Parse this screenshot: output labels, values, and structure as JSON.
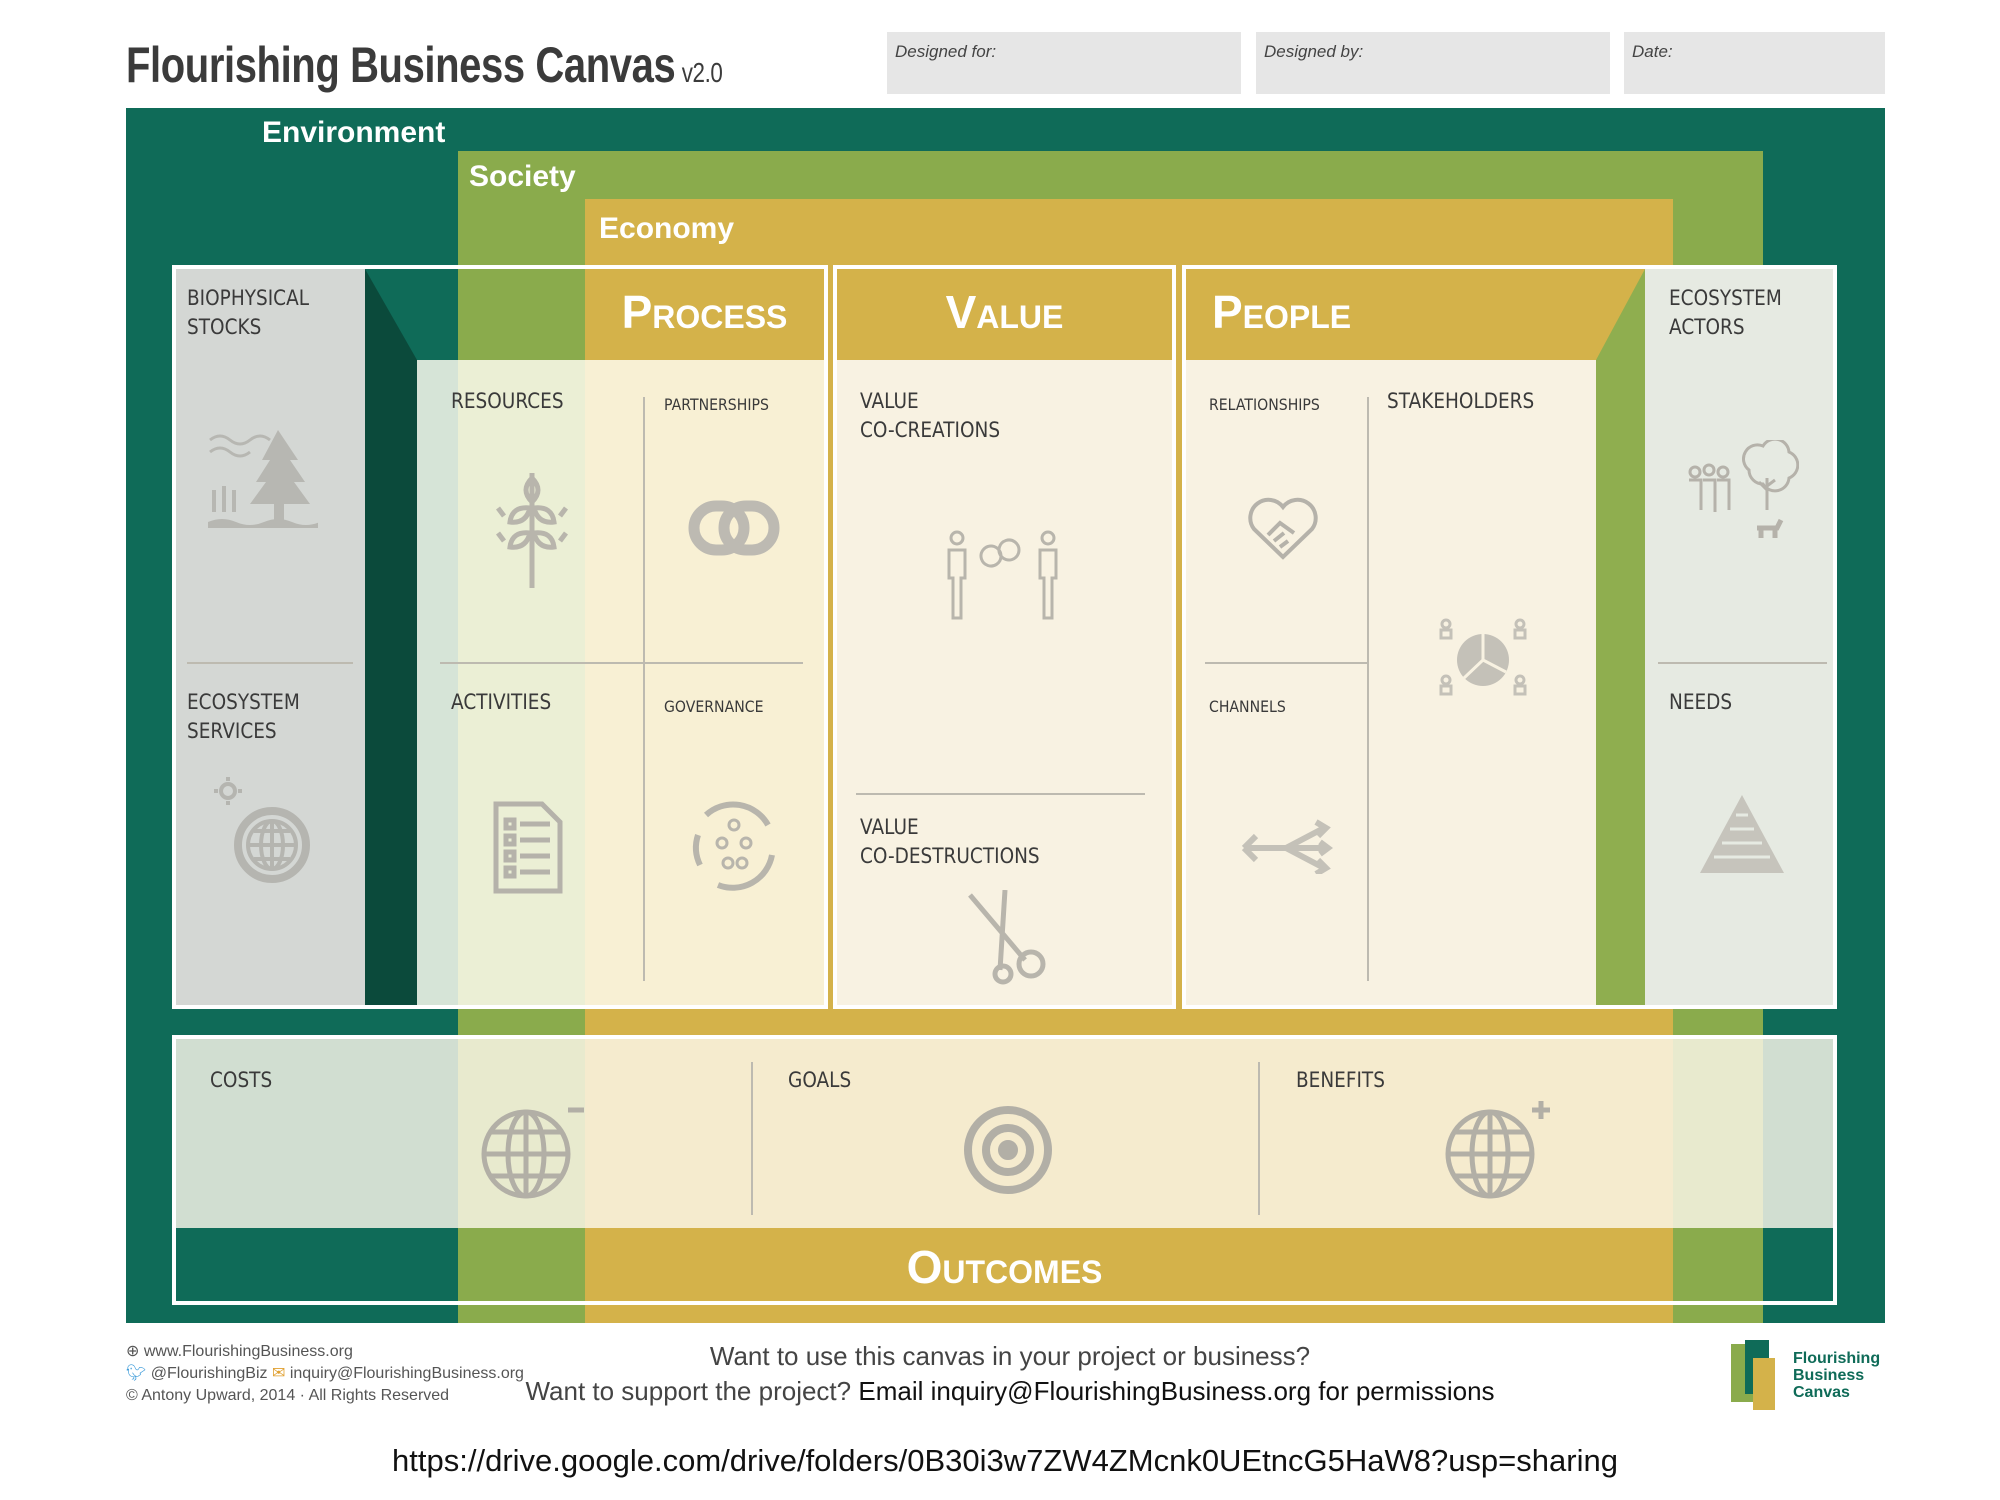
{
  "header": {
    "title": "Flourishing Business Canvas",
    "version": "v2.0",
    "designed_for": "Designed for:",
    "designed_by": "Designed by:",
    "date": "Date:"
  },
  "layers": {
    "environment": "Environment",
    "society": "Society",
    "economy": "Economy"
  },
  "colors": {
    "environment": "#0f6b58",
    "society": "#8aab4c",
    "economy": "#d4b24a",
    "dark_strip": "#0b4a3b",
    "icon": "#b5b2a8"
  },
  "columns": {
    "biophysical_stocks": "BIOPHYSICAL\nSTOCKS",
    "ecosystem_services": "ECOSYSTEM\nSERVICES",
    "process": {
      "title": "Process",
      "resources": "RESOURCES",
      "partnerships": "PARTNERSHIPS",
      "activities": "ACTIVITIES",
      "governance": "GOVERNANCE"
    },
    "value": {
      "title": "Value",
      "co_creations": "VALUE\nCO-CREATIONS",
      "co_destructions": "VALUE\nCO-DESTRUCTIONS"
    },
    "people": {
      "title": "People",
      "relationships": "RELATIONSHIPS",
      "stakeholders": "STAKEHOLDERS",
      "channels": "CHANNELS"
    },
    "ecosystem_actors": "ECOSYSTEM\nACTORS",
    "needs": "NEEDS"
  },
  "outcomes": {
    "title": "Outcomes",
    "costs": "COSTS",
    "goals": "GOALS",
    "benefits": "BENEFITS"
  },
  "footer": {
    "website": "www.FlourishingBusiness.org",
    "twitter": "@FlourishingBiz",
    "email": "inquiry@FlourishingBusiness.org",
    "copyright": "© Antony Upward, 2014 · All Rights Reserved",
    "cta_line1": "Want to use this canvas in your project or business?",
    "cta_line2_a": "Want to support the project?",
    "cta_line2_b": "Email inquiry@FlourishingBusiness.org for permissions",
    "logo_text": "Flourishing Business Canvas"
  },
  "url": "https://drive.google.com/drive/folders/0B30i3w7ZW4ZMcnk0UEtncG5HaW8?usp=sharing"
}
